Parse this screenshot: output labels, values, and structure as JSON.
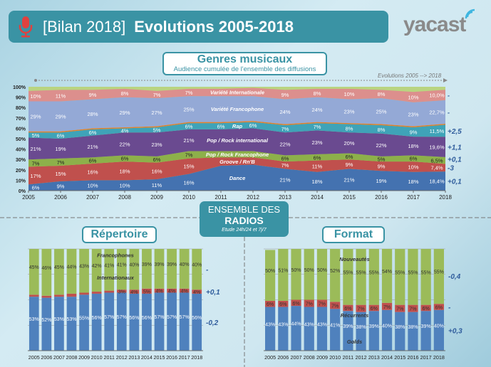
{
  "header": {
    "bracket": "[Bilan 2018]",
    "title": "Evolutions 2005-2018",
    "icon": "microphone-icon",
    "logo": "yacast"
  },
  "genres_box": {
    "title": "Genres musicaux",
    "subtitle": "Audience cumulée de l'ensemble des diffusions"
  },
  "evolution_note": "Evolutions 2005 --> 2018",
  "center_box": {
    "line1": "ENSEMBLE DES",
    "line2": "RADIOS",
    "line3": "Etude 24h/24 et 7j/7"
  },
  "repertoire_title": "Répertoire",
  "format_title": "Format",
  "colors": {
    "header": "#3a93a4",
    "dance": "#4472b0",
    "groove": "#c0504d",
    "pop_franco": "#8db04a",
    "pop_int": "#6a4a90",
    "rap": "#3fa3b8",
    "orange": "#e57f2a",
    "var_franco": "#94a9d6",
    "var_int": "#dc8f8d",
    "top": "#b9d480"
  },
  "chart_data": [
    {
      "type": "area",
      "stacked": true,
      "x": [
        "2005",
        "2006",
        "2007",
        "2008",
        "2009",
        "2010",
        "2011",
        "2012",
        "2013",
        "2014",
        "2015",
        "2016",
        "2017",
        "2018"
      ],
      "yticks": [
        "0%",
        "10%",
        "20%",
        "30%",
        "40%",
        "50%",
        "60%",
        "70%",
        "80%",
        "90%",
        "100%"
      ],
      "ylim": [
        0,
        100
      ],
      "series": [
        {
          "name": "Dance",
          "color": "#4472b0",
          "values": [
            6,
            9,
            10,
            10,
            11,
            16,
            24,
            25,
            21,
            18,
            21,
            19,
            18,
            18.4
          ],
          "labels": [
            "6%",
            "9%",
            "10%",
            "10%",
            "11%",
            "16%",
            "",
            "",
            "21%",
            "18%",
            "21%",
            "19%",
            "18%",
            "18,4%"
          ],
          "evolution": "+0,1"
        },
        {
          "name": "Groove / Rn'B",
          "color": "#c0504d",
          "values": [
            17,
            15,
            16,
            18,
            16,
            15,
            8,
            7,
            7,
            11,
            9,
            9,
            10,
            7.4
          ],
          "labels": [
            "17%",
            "15%",
            "16%",
            "18%",
            "16%",
            "15%",
            "",
            "",
            "7%",
            "11%",
            "9%",
            "9%",
            "10%",
            "7,4%"
          ],
          "evolution": "-3"
        },
        {
          "name": "Pop / Rock Francophone",
          "color": "#8db04a",
          "values": [
            7,
            7,
            6,
            6,
            6,
            7,
            6,
            6,
            6,
            6,
            6,
            5,
            6,
            6.5
          ],
          "labels": [
            "7%",
            "7%",
            "6%",
            "6%",
            "6%",
            "7%",
            "",
            "",
            "6%",
            "6%",
            "6%",
            "5%",
            "6%",
            "6,5%"
          ],
          "evolution": "+0,1"
        },
        {
          "name": "Pop / Rock international",
          "color": "#6a4a90",
          "values": [
            21,
            19,
            21,
            22,
            23,
            21,
            21,
            22,
            22,
            23,
            20,
            22,
            18,
            19.6
          ],
          "labels": [
            "21%",
            "19%",
            "21%",
            "22%",
            "23%",
            "21%",
            "",
            "",
            "22%",
            "23%",
            "20%",
            "22%",
            "18%",
            "19,6%"
          ],
          "evolution": "+1,1"
        },
        {
          "name": "Rap",
          "color": "#3fa3b8",
          "values": [
            5,
            6,
            6,
            4,
            5,
            6,
            6,
            6,
            7,
            7,
            8,
            8,
            9,
            11.5
          ],
          "labels": [
            "5%",
            "6%",
            "6%",
            "4%",
            "5%",
            "6%",
            "6%",
            "6%",
            "7%",
            "7%",
            "8%",
            "8%",
            "9%",
            "11,5%"
          ],
          "evolution": "+2,5"
        },
        {
          "name": "",
          "color": "#e57f2a",
          "values": [
            1,
            1,
            1,
            1,
            1,
            1,
            1,
            1,
            1,
            1,
            1,
            1,
            1,
            1
          ],
          "labels": [],
          "evolution": ""
        },
        {
          "name": "Variété Francophone",
          "color": "#94a9d6",
          "values": [
            29,
            29,
            28,
            29,
            27,
            25,
            25,
            24,
            24,
            24,
            23,
            25,
            23,
            22.7
          ],
          "labels": [
            "29%",
            "29%",
            "28%",
            "29%",
            "27%",
            "25%",
            "",
            "",
            "24%",
            "24%",
            "23%",
            "25%",
            "23%",
            "22,7%"
          ],
          "evolution": "-"
        },
        {
          "name": "Variété Internationale",
          "color": "#dc8f8d",
          "values": [
            10,
            11,
            9,
            8,
            7,
            7,
            7,
            8,
            9,
            8,
            10,
            8,
            10,
            10.0
          ],
          "labels": [
            "10%",
            "11%",
            "9%",
            "8%",
            "7%",
            "7%",
            "",
            "",
            "9%",
            "8%",
            "10%",
            "8%",
            "10%",
            "10,0%"
          ],
          "evolution": "-"
        }
      ]
    },
    {
      "type": "bar",
      "stacked": true,
      "title": "Répertoire",
      "x": [
        "2005",
        "2006",
        "2007",
        "2008",
        "2009",
        "2010",
        "2011",
        "2012",
        "2013",
        "2014",
        "2015",
        "2016",
        "2017",
        "2018"
      ],
      "ylim": [
        0,
        100
      ],
      "series": [
        {
          "name": "Internationaux",
          "color": "#4f81bd",
          "values": [
            53,
            52,
            53,
            53,
            55,
            56,
            57,
            57,
            56,
            56,
            57,
            57,
            57,
            56
          ],
          "labels": [
            "53%",
            "52%",
            "53%",
            "53%",
            "55%",
            "56%",
            "57%",
            "57%",
            "56%",
            "56%",
            "57%",
            "57%",
            "57%",
            "56%"
          ],
          "evolution": "-0,2"
        },
        {
          "name": "",
          "color": "#c0504d",
          "values": [
            2,
            2,
            2,
            3,
            2,
            2,
            2,
            3,
            4,
            5,
            4,
            4,
            4,
            4
          ],
          "labels": [
            "",
            "",
            "",
            "",
            "",
            "",
            "",
            "3%",
            "4%",
            "5%",
            "4%",
            "4%",
            "4%",
            "4%"
          ],
          "evolution": "+0,1"
        },
        {
          "name": "Francophones",
          "color": "#9bbb59",
          "values": [
            45,
            46,
            45,
            44,
            43,
            42,
            41,
            41,
            40,
            39,
            39,
            39,
            40,
            40
          ],
          "labels": [
            "45%",
            "46%",
            "45%",
            "44%",
            "43%",
            "42%",
            "41%",
            "41%",
            "40%",
            "39%",
            "39%",
            "39%",
            "40%",
            "40%"
          ],
          "evolution": "-"
        }
      ]
    },
    {
      "type": "bar",
      "stacked": true,
      "title": "Format",
      "x": [
        "2005",
        "2006",
        "2007",
        "2008",
        "2009",
        "2010",
        "2011",
        "2012",
        "2013",
        "2014",
        "2015",
        "2016",
        "2017",
        "2018"
      ],
      "ylim": [
        0,
        100
      ],
      "series": [
        {
          "name": "Golds",
          "color": "#4f81bd",
          "values": [
            43,
            43,
            44,
            43,
            43,
            41,
            39,
            38,
            39,
            40,
            38,
            38,
            39,
            40
          ],
          "labels": [
            "43%",
            "43%",
            "44%",
            "43%",
            "43%",
            "41%",
            "39%",
            "38%",
            "39%",
            "40%",
            "38%",
            "38%",
            "39%",
            "40%"
          ],
          "evolution": "+0,3"
        },
        {
          "name": "Récurrents",
          "color": "#c0504d",
          "values": [
            6,
            6,
            6,
            7,
            7,
            7,
            6,
            7,
            6,
            7,
            7,
            7,
            6,
            6
          ],
          "labels": [
            "6%",
            "6%",
            "6%",
            "7%",
            "7%",
            "7%",
            "6%",
            "7%",
            "6%",
            "7%",
            "7%",
            "7%",
            "6%",
            "6%"
          ],
          "evolution": "-"
        },
        {
          "name": "Nouveautés",
          "color": "#9bbb59",
          "values": [
            50,
            51,
            50,
            50,
            50,
            52,
            55,
            55,
            55,
            54,
            55,
            55,
            55,
            55
          ],
          "labels": [
            "50%",
            "51%",
            "50%",
            "50%",
            "50%",
            "52%",
            "55%",
            "55%",
            "55%",
            "54%",
            "55%",
            "55%",
            "55%",
            "55%"
          ],
          "evolution": "-0,4"
        }
      ]
    }
  ]
}
